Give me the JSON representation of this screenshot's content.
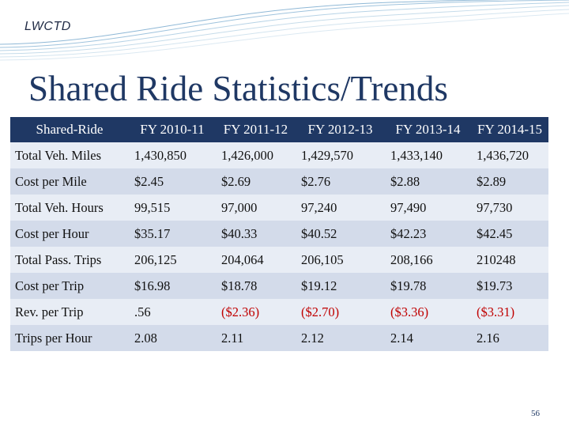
{
  "header": {
    "logo_text": "LWCTD"
  },
  "slide": {
    "title": "Shared Ride Statistics/Trends",
    "page_number": "56"
  },
  "table": {
    "columns": [
      "Shared-Ride",
      "FY 2010-11",
      "FY 2011-12",
      "FY 2012-13",
      "FY 2013-14",
      "FY 2014-15"
    ],
    "rows": [
      [
        "Total Veh. Miles",
        "1,430,850",
        "1,426,000",
        "1,429,570",
        "1,433,140",
        "1,436,720"
      ],
      [
        "Cost per Mile",
        "$2.45",
        "$2.69",
        "$2.76",
        "$2.88",
        "$2.89"
      ],
      [
        "Total Veh. Hours",
        "99,515",
        "97,000",
        "97,240",
        "97,490",
        "97,730"
      ],
      [
        "Cost per Hour",
        "$35.17",
        "$40.33",
        "$40.52",
        "$42.23",
        "$42.45"
      ],
      [
        "Total Pass. Trips",
        "206,125",
        "204,064",
        "206,105",
        "208,166",
        "210248"
      ],
      [
        "Cost per Trip",
        "$16.98",
        "$18.78",
        "$19.12",
        "$19.78",
        "$19.73"
      ],
      [
        "Rev. per Trip",
        ".56",
        "($2.36)",
        "($2.70)",
        "($3.36)",
        "($3.31)"
      ],
      [
        "Trips per Hour",
        "2.08",
        "2.11",
        "2.12",
        "2.14",
        "2.16"
      ]
    ]
  },
  "colors": {
    "header_fill": "#1f3864",
    "negative": "#c00000",
    "row_light": "#e8edf5",
    "row_dark": "#d3dbea"
  }
}
